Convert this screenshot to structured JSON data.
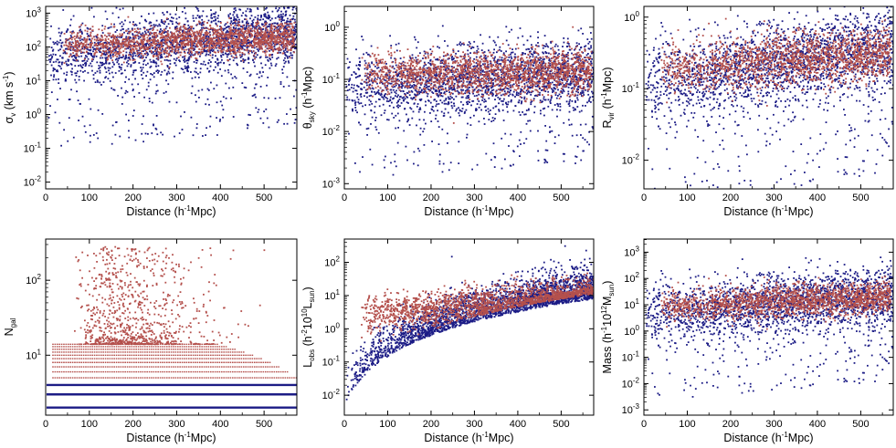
{
  "colors": {
    "red_points": "#b4504c",
    "blue_points": "#1c1c86",
    "axis": "#000000"
  },
  "chart_data": [
    {
      "type": "scatter",
      "id": "sigma_v",
      "xlabel": "Distance  (h⁻¹Mpc)",
      "ylabel": "σv  (km s⁻¹)",
      "ylabel_parts": {
        "main": "σ",
        "sub": "v",
        "rest": "  (km s",
        "sup": "-1",
        "end": ")"
      },
      "xlim": [
        0,
        575
      ],
      "ylim_log10": [
        -2.2,
        3.2
      ],
      "yscale": "log",
      "xticks": [
        0,
        100,
        200,
        300,
        400,
        500
      ],
      "yticks": [
        "10^-2",
        "10^-1",
        "10^0",
        "10^1",
        "10^2",
        "10^3"
      ],
      "series": [
        {
          "color": "blue",
          "trend": [
            [
              0,
              1.7
            ],
            [
              575,
              2.5
            ]
          ],
          "spread": 0.45,
          "tail": -1.3
        },
        {
          "color": "red",
          "trend": [
            [
              0,
              2.0
            ],
            [
              575,
              2.3
            ]
          ],
          "spread": 0.22
        }
      ]
    },
    {
      "type": "scatter",
      "id": "theta_sky",
      "xlabel": "Distance  (h⁻¹Mpc)",
      "ylabel": "θsky  (h⁻¹Mpc)",
      "ylabel_parts": {
        "main": "θ",
        "sub": "sky",
        "rest": "  (h",
        "sup": "-1",
        "end": "Mpc)"
      },
      "xlim": [
        0,
        575
      ],
      "ylim_log10": [
        -3.1,
        0.4
      ],
      "yscale": "log",
      "xticks": [
        0,
        100,
        200,
        300,
        400,
        500
      ],
      "yticks": [
        "10^-3",
        "10^-2",
        "10^-1",
        "10^0"
      ],
      "series": [
        {
          "color": "blue",
          "trend": [
            [
              0,
              -1.15
            ],
            [
              575,
              -0.85
            ]
          ],
          "spread": 0.32,
          "tail": -0.8
        },
        {
          "color": "red",
          "trend": [
            [
              0,
              -0.9
            ],
            [
              575,
              -0.85
            ]
          ],
          "spread": 0.2
        }
      ]
    },
    {
      "type": "scatter",
      "id": "r_vir",
      "xlabel": "Distance  (h⁻¹Mpc)",
      "ylabel": "Rvir  (h⁻¹Mpc)",
      "ylabel_parts": {
        "main": "R",
        "sub": "vir",
        "rest": "  (h",
        "sup": "-1",
        "end": "Mpc)"
      },
      "xlim": [
        0,
        575
      ],
      "ylim_log10": [
        -2.4,
        0.15
      ],
      "yscale": "log",
      "xticks": [
        0,
        100,
        200,
        300,
        400,
        500
      ],
      "yticks": [
        "10^-2",
        "10^-1",
        "10^0"
      ],
      "series": [
        {
          "color": "blue",
          "trend": [
            [
              0,
              -0.95
            ],
            [
              575,
              -0.4
            ]
          ],
          "spread": 0.28,
          "tail": -0.8
        },
        {
          "color": "red",
          "trend": [
            [
              0,
              -0.75
            ],
            [
              575,
              -0.5
            ]
          ],
          "spread": 0.18
        }
      ]
    },
    {
      "type": "scatter",
      "id": "n_gal",
      "xlabel": "Distance  (h⁻¹Mpc)",
      "ylabel": "Ngal",
      "ylabel_parts": {
        "main": "N",
        "sub": "gal",
        "rest": "",
        "sup": "",
        "end": ""
      },
      "xlim": [
        0,
        575
      ],
      "ylim_log10": [
        0.2,
        2.55
      ],
      "yscale": "log",
      "xticks": [
        0,
        100,
        200,
        300,
        400,
        500
      ],
      "yticks": [
        "10^1",
        "10^2"
      ],
      "blue_levels": [
        2,
        3,
        4
      ],
      "red_levels": [
        5,
        6,
        7,
        8,
        9,
        10,
        11,
        12,
        13,
        14
      ],
      "series": [
        {
          "color": "blue",
          "note": "integer bands"
        },
        {
          "color": "red",
          "note": "integer bands plus sparse high values"
        }
      ]
    },
    {
      "type": "scatter",
      "id": "l_obs",
      "xlabel": "Distance  (h⁻¹Mpc)",
      "ylabel": "Lobs  (h⁻² 10¹⁰ Lsun)",
      "ylabel_parts": {
        "main": "L",
        "sub": "obs",
        "rest": "  (h",
        "sup": "-2",
        "end": "10",
        "sup2": "10",
        "end2": "L",
        "sub2": "sun",
        "end3": ")"
      },
      "xlim": [
        0,
        575
      ],
      "ylim_log10": [
        -2.6,
        2.7
      ],
      "yscale": "log",
      "xticks": [
        0,
        100,
        200,
        300,
        400,
        500
      ],
      "yticks": [
        "10^-2",
        "10^-1",
        "10^0",
        "10^1",
        "10^2"
      ],
      "series": [
        {
          "color": "blue",
          "note": "lower envelope rising with distance"
        },
        {
          "color": "red",
          "trend": [
            [
              0,
              0.4
            ],
            [
              575,
              0.95
            ]
          ],
          "spread": 0.28
        }
      ]
    },
    {
      "type": "scatter",
      "id": "mass",
      "xlabel": "Distance  (h⁻¹Mpc)",
      "ylabel": "Mass  (h⁻¹ 10¹² Msun)",
      "ylabel_parts": {
        "main": "Mass",
        "sub": "",
        "rest": "  (h",
        "sup": "-1",
        "end": "10",
        "sup2": "12",
        "end2": "M",
        "sub2": "sun",
        "end3": ")"
      },
      "xlim": [
        0,
        575
      ],
      "ylim_log10": [
        -3.2,
        3.5
      ],
      "yscale": "log",
      "xticks": [
        0,
        100,
        200,
        300,
        400,
        500
      ],
      "yticks": [
        "10^-3",
        "10^-2",
        "10^-1",
        "10^0",
        "10^1",
        "10^2",
        "10^3"
      ],
      "series": [
        {
          "color": "blue",
          "trend": [
            [
              0,
              0.6
            ],
            [
              575,
              1.4
            ]
          ],
          "spread": 0.55,
          "tail": -1.5
        },
        {
          "color": "red",
          "trend": [
            [
              0,
              0.9
            ],
            [
              575,
              1.3
            ]
          ],
          "spread": 0.3
        }
      ]
    }
  ]
}
